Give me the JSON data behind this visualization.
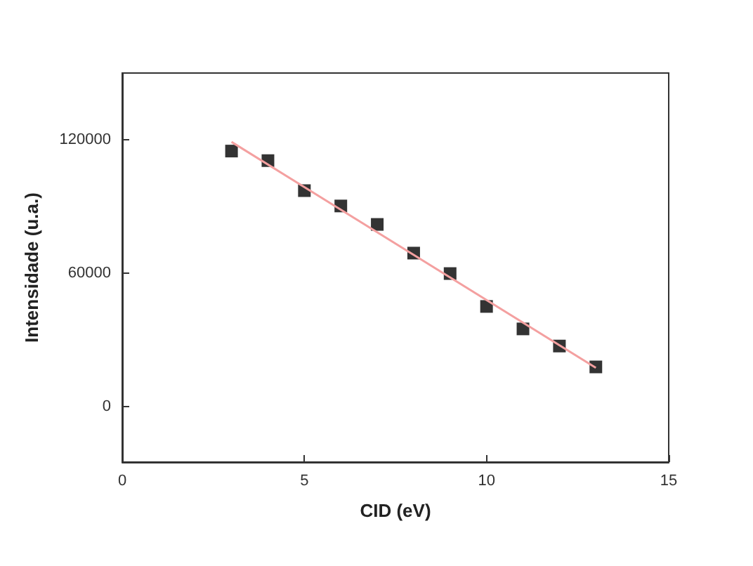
{
  "chart_data": {
    "type": "scatter",
    "xlabel": "CID (eV)",
    "ylabel": "Intensidade (u.a.)",
    "x": [
      3,
      4,
      5,
      6,
      7,
      8,
      9,
      10,
      11,
      12,
      13
    ],
    "series": [
      {
        "color": "#000000",
        "marker": "square",
        "values": [
          114900,
          110600,
          97100,
          90200,
          81900,
          69000,
          59800,
          45000,
          34900,
          27200,
          17800
        ]
      },
      {
        "type": "line",
        "color": "#f4a0a0",
        "x": [
          3,
          13
        ],
        "values": [
          119000,
          17400
        ]
      }
    ],
    "xlim": [
      0,
      15
    ],
    "xticks": [
      0,
      5,
      10,
      15
    ],
    "ylim": [
      -25000,
      150000
    ],
    "yticks": [
      0,
      60000,
      120000
    ],
    "grid": false
  }
}
